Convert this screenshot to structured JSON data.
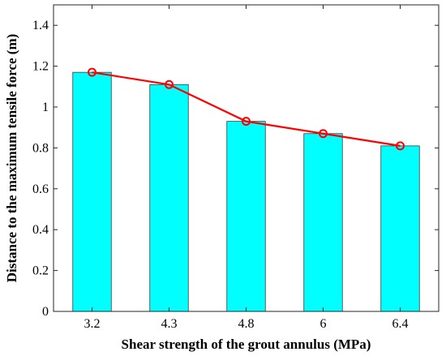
{
  "chart_data": {
    "type": "bar",
    "categories": [
      "3.2",
      "4.3",
      "4.8",
      "6",
      "6.4"
    ],
    "values": [
      1.17,
      1.11,
      0.93,
      0.87,
      0.81
    ],
    "line_overlay": {
      "values": [
        1.17,
        1.11,
        0.93,
        0.87,
        0.81
      ],
      "marker": "circle"
    },
    "xlabel": "Shear strength of the grout annulus (MPa)",
    "ylabel": "Distance to the maximum tensile force (m)",
    "ylim": [
      0,
      1.5
    ],
    "yticks": [
      "0",
      "0.2",
      "0.4",
      "0.6",
      "0.8",
      "1",
      "1.2",
      "1.4"
    ],
    "grid": false,
    "legend": "none",
    "colors": {
      "bar_fill": "#00ffff",
      "bar_edge": "#3a3a3a",
      "line": "#ff0000",
      "axis": "#262626"
    }
  }
}
